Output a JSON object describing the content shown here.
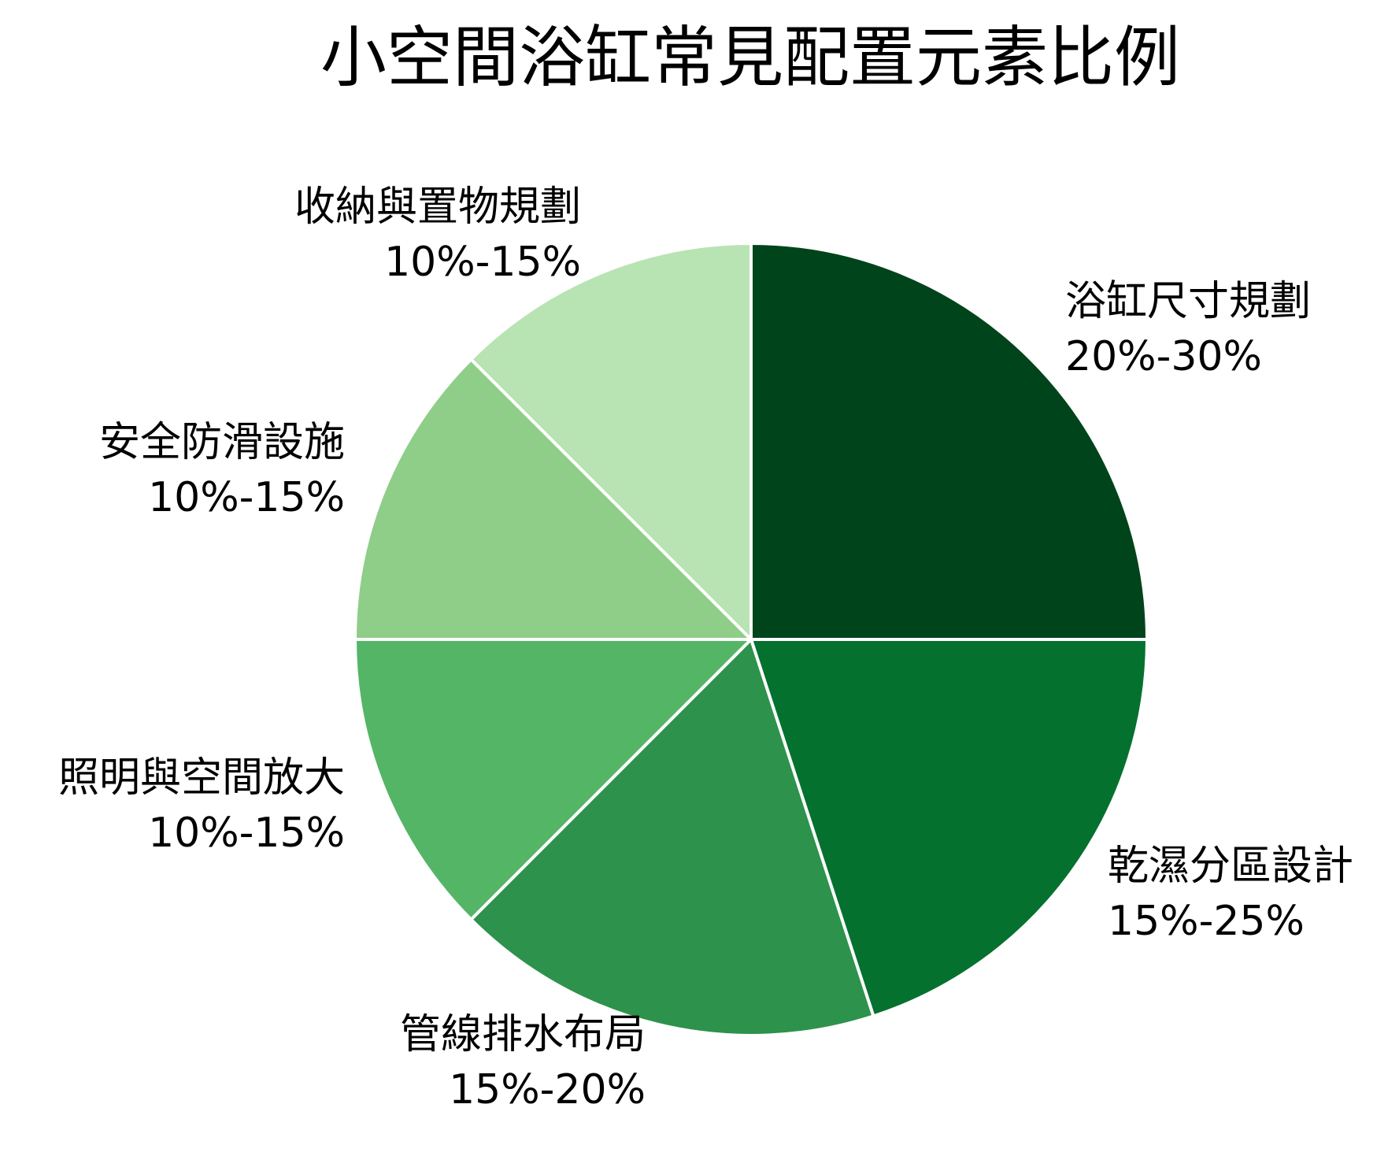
{
  "chart_data": {
    "type": "pie",
    "title": "小空間浴缸常見配置元素比例",
    "start_angle": "12 o'clock",
    "direction": "clockwise",
    "slices": [
      {
        "label": "浴缸尺寸規劃",
        "range": "20%-30%",
        "value": 25,
        "color": "#00441b"
      },
      {
        "label": "乾濕分區設計",
        "range": "15%-25%",
        "value": 20,
        "color": "#05712f"
      },
      {
        "label": "管線排水布局",
        "range": "15%-20%",
        "value": 17.5,
        "color": "#2d924b"
      },
      {
        "label": "照明與空間放大",
        "range": "10%-15%",
        "value": 12.5,
        "color": "#55b567"
      },
      {
        "label": "安全防滑設施",
        "range": "10%-15%",
        "value": 12.5,
        "color": "#8ece88"
      },
      {
        "label": "收納與置物規劃",
        "range": "10%-15%",
        "value": 12.5,
        "color": "#b8e3b2"
      }
    ]
  }
}
